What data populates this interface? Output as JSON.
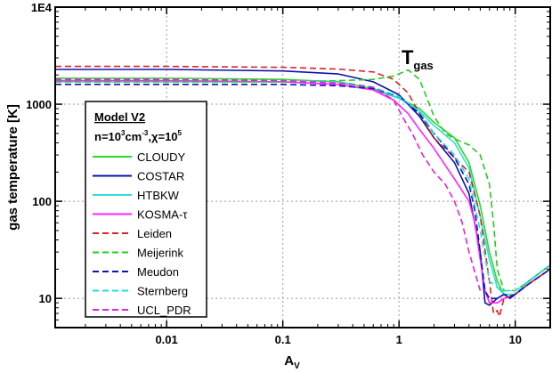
{
  "chart_data": {
    "type": "line",
    "xscale": "log",
    "yscale": "log",
    "xlim": [
      0.0011,
      20
    ],
    "ylim": [
      5,
      10000
    ],
    "xlabel": "A",
    "xlabel_sub": "V",
    "ylabel": "gas temperature [K]",
    "grid": true,
    "x_ticks": [
      {
        "value": 0.01,
        "label": "0.01"
      },
      {
        "value": 0.1,
        "label": "0.1"
      },
      {
        "value": 1,
        "label": "1"
      },
      {
        "value": 10,
        "label": "10"
      }
    ],
    "y_ticks": [
      {
        "value": 10,
        "label": "10"
      },
      {
        "value": 100,
        "label": "100"
      },
      {
        "value": 1000,
        "label": "1000"
      },
      {
        "value": 10000,
        "label": "1E4"
      }
    ],
    "annotation": {
      "text": "T",
      "sub": "gas",
      "x": 1.05,
      "y": 2600
    },
    "legend": {
      "position": "middle-left",
      "title": "Model V2",
      "subtitle_parts": [
        "n=10",
        "3",
        "cm",
        "-3",
        ",χ=10",
        "5"
      ]
    },
    "series": [
      {
        "name": "CLOUDY",
        "color": "#22dd22",
        "dash": "solid",
        "x": [
          0.0011,
          0.01,
          0.1,
          0.3,
          0.6,
          1.0,
          1.5,
          2.0,
          3.0,
          4.0,
          5.0,
          6.0,
          7.0,
          8.0,
          10.0,
          13.0,
          20.0
        ],
        "y": [
          1850,
          1850,
          1800,
          1700,
          1450,
          1150,
          900,
          650,
          450,
          250,
          90,
          30,
          15,
          11,
          11,
          15,
          22
        ]
      },
      {
        "name": "COSTAR",
        "color": "#0b13a8",
        "dash": "solid",
        "x": [
          0.0011,
          0.01,
          0.1,
          0.3,
          0.6,
          1.0,
          1.5,
          2.0,
          3.0,
          4.0,
          5.0,
          5.5,
          6.0,
          7.0,
          8.0,
          9.0,
          10.0,
          13.0,
          20.0
        ],
        "y": [
          2280,
          2280,
          2200,
          2050,
          1700,
          1250,
          750,
          450,
          250,
          120,
          30,
          9,
          8.5,
          10,
          11,
          10,
          11,
          15,
          22
        ]
      },
      {
        "name": "HTBKW",
        "color": "#33dddd",
        "dash": "solid",
        "x": [
          0.0011,
          0.01,
          0.1,
          0.3,
          0.6,
          1.0,
          1.5,
          2.0,
          3.0,
          4.0,
          5.0,
          6.0,
          7.0,
          8.0,
          10.0,
          13.0,
          20.0
        ],
        "y": [
          1700,
          1700,
          1700,
          1600,
          1400,
          1150,
          850,
          600,
          400,
          220,
          70,
          25,
          13,
          11,
          11,
          15,
          22
        ]
      },
      {
        "name": "KOSMA-τ",
        "color": "#ff22ff",
        "dash": "solid",
        "x": [
          0.0011,
          0.01,
          0.1,
          0.3,
          0.6,
          0.9,
          1.2,
          1.5,
          2.0,
          3.0,
          4.0,
          4.5,
          5.0,
          5.5,
          6.0,
          7.0,
          8.0,
          10.0,
          13.0,
          20.0
        ],
        "y": [
          1750,
          1750,
          1700,
          1600,
          1400,
          1100,
          800,
          550,
          350,
          170,
          100,
          60,
          25,
          12,
          9,
          9,
          10,
          11,
          14,
          20
        ]
      },
      {
        "name": "Leiden",
        "color": "#dd2222",
        "dash": "dash",
        "x": [
          0.0011,
          0.01,
          0.1,
          0.3,
          0.6,
          0.9,
          1.2,
          1.5,
          2.0,
          3.0,
          4.0,
          5.0,
          6.0,
          6.5,
          7.0,
          7.3,
          8.0,
          10.0,
          13.0,
          20.0
        ],
        "y": [
          2450,
          2450,
          2400,
          2300,
          2150,
          1800,
          1300,
          800,
          450,
          280,
          200,
          70,
          15,
          7,
          7.5,
          6.5,
          10,
          11,
          14,
          20
        ]
      },
      {
        "name": "Meijerink",
        "color": "#22cc22",
        "dash": "dash",
        "x": [
          0.0011,
          0.01,
          0.1,
          0.3,
          0.6,
          0.9,
          1.2,
          1.5,
          2.0,
          2.5,
          3.0,
          4.0,
          5.0,
          6.0,
          6.5,
          7.0,
          8.0,
          10.0,
          13.0,
          20.0
        ],
        "y": [
          1700,
          1700,
          1700,
          1750,
          1800,
          1950,
          2250,
          1800,
          750,
          500,
          440,
          380,
          300,
          150,
          60,
          20,
          12,
          12,
          15,
          22
        ]
      },
      {
        "name": "Meudon",
        "color": "#1111bb",
        "dash": "dash",
        "x": [
          0.0011,
          0.01,
          0.1,
          0.3,
          0.6,
          1.0,
          1.5,
          2.0,
          3.0,
          4.0,
          4.5,
          5.0,
          5.5,
          6.0,
          7.0,
          8.0,
          9.0,
          10.0,
          13.0,
          20.0
        ],
        "y": [
          1600,
          1600,
          1600,
          1550,
          1450,
          1200,
          800,
          500,
          280,
          150,
          80,
          30,
          12,
          10,
          10,
          11,
          10.5,
          11,
          14,
          20
        ]
      },
      {
        "name": "Sternberg",
        "color": "#22dddd",
        "dash": "dash",
        "x": [
          0.0011,
          0.01,
          0.1,
          0.3,
          0.6,
          1.0,
          1.5,
          2.0,
          3.0,
          4.0,
          5.0,
          6.0,
          7.0,
          8.0,
          10.0,
          13.0,
          20.0
        ],
        "y": [
          1800,
          1800,
          1750,
          1700,
          1500,
          1200,
          850,
          500,
          300,
          170,
          50,
          15,
          13,
          12,
          12,
          15,
          22
        ]
      },
      {
        "name": "UCL_PDR",
        "color": "#dd22dd",
        "dash": "dash",
        "x": [
          0.0011,
          0.01,
          0.1,
          0.3,
          0.6,
          0.9,
          1.1,
          1.3,
          1.6,
          2.0,
          2.5,
          3.0,
          3.5,
          4.0,
          5.0
        ],
        "y": [
          1800,
          1800,
          1750,
          1650,
          1500,
          1100,
          700,
          500,
          300,
          200,
          150,
          100,
          60,
          30,
          12
        ]
      }
    ]
  }
}
